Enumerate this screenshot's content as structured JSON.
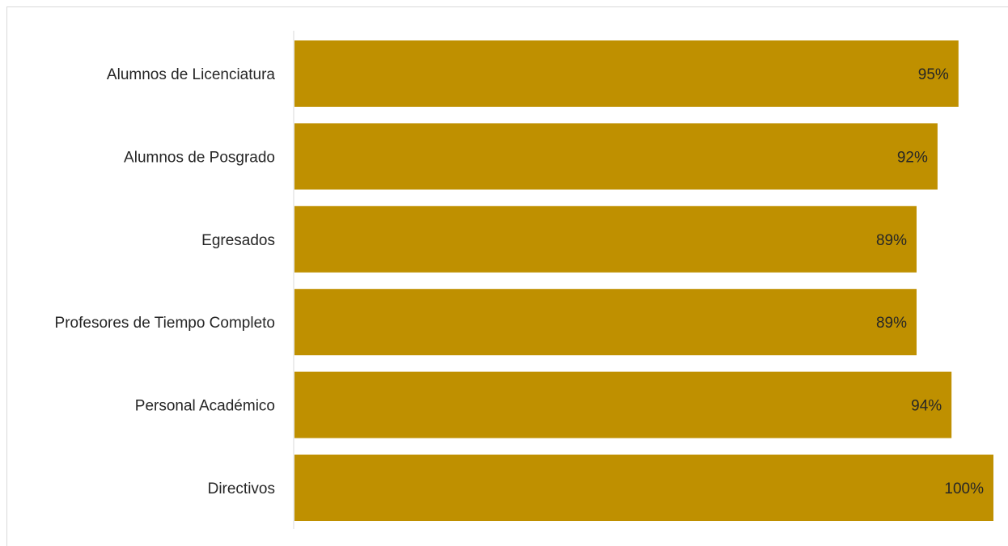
{
  "chart_data": {
    "type": "bar",
    "orientation": "horizontal",
    "categories": [
      "Alumnos de Licenciatura",
      "Alumnos de Posgrado",
      "Egresados",
      "Profesores de Tiempo Completo",
      "Personal Académico",
      "Directivos"
    ],
    "values": [
      95,
      92,
      89,
      89,
      94,
      100
    ],
    "value_labels": [
      "95%",
      "92%",
      "89%",
      "89%",
      "94%",
      "100%"
    ],
    "value_unit": "%",
    "xlim": [
      0,
      100
    ],
    "grid": false,
    "legend": "none",
    "bar_color": "#BF9000"
  }
}
